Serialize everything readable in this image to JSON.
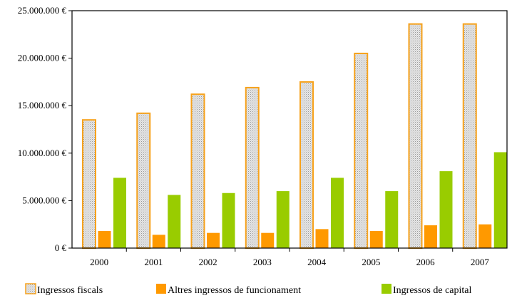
{
  "chart_data": {
    "type": "bar",
    "title": "",
    "xlabel": "",
    "ylabel": "",
    "categories": [
      "2000",
      "2001",
      "2002",
      "2003",
      "2004",
      "2005",
      "2006",
      "2007"
    ],
    "ylim": [
      0,
      25000000
    ],
    "yticks": [
      {
        "value": 0,
        "label": "0 €"
      },
      {
        "value": 5000000,
        "label": "5.000.000 €"
      },
      {
        "value": 10000000,
        "label": "10.000.000 €"
      },
      {
        "value": 15000000,
        "label": "15.000.000 €"
      },
      {
        "value": 20000000,
        "label": "20.000.000 €"
      },
      {
        "value": 25000000,
        "label": "25.000.000 €"
      }
    ],
    "grid": false,
    "legend_position": "bottom",
    "series": [
      {
        "name": "Ingressos fiscals",
        "fill": "#d9d9d9",
        "stroke": "#f7a21b",
        "pattern": "dotted",
        "values": [
          13500000,
          14200000,
          16200000,
          16900000,
          17500000,
          20500000,
          23600000,
          23600000
        ]
      },
      {
        "name": "Altres ingressos de funcionament",
        "fill": "#ff9900",
        "stroke": "#ff9900",
        "pattern": "solid",
        "values": [
          1800000,
          1400000,
          1600000,
          1600000,
          2000000,
          1800000,
          2400000,
          2500000
        ]
      },
      {
        "name": "Ingressos de capital",
        "fill": "#99cc00",
        "stroke": "#99cc00",
        "pattern": "solid",
        "values": [
          7400000,
          5600000,
          5800000,
          6000000,
          7400000,
          6000000,
          8100000,
          10100000
        ]
      }
    ]
  }
}
